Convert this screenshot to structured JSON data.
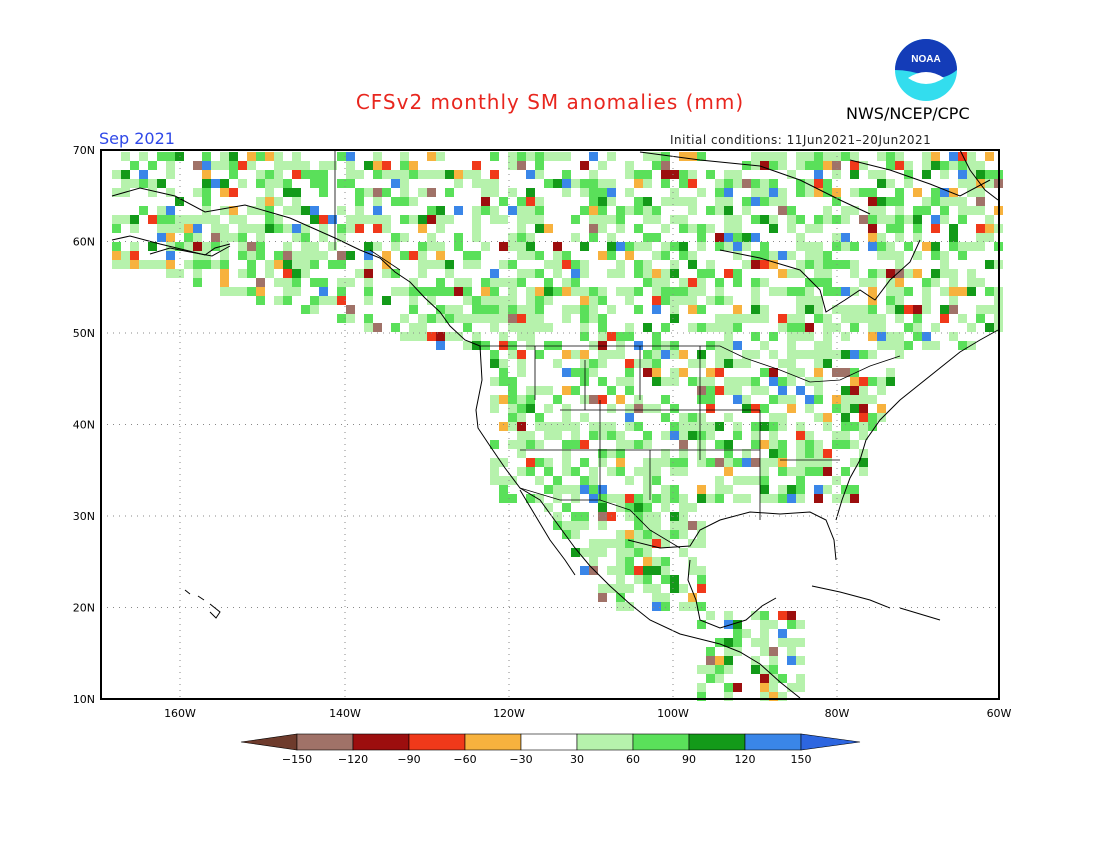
{
  "header": {
    "title": "CFSv2 monthly SM anomalies (mm)",
    "agency": "NWS/NCEP/CPC",
    "month": "Sep 2021",
    "initial_conditions": "Initial conditions: 11Jun2021–20Jun2021",
    "logo_text": "NOAA"
  },
  "map": {
    "lat_labels": [
      "70N",
      "60N",
      "50N",
      "40N",
      "30N",
      "20N",
      "10N"
    ],
    "lon_labels": [
      "160W",
      "140W",
      "120W",
      "100W",
      "80W",
      "60W"
    ],
    "colors": {
      "land_neutral": "#ffffff",
      "ocean": "#ffffff",
      "frame": "#000000",
      "grid": "#888888"
    }
  },
  "colorbar": {
    "labels": [
      "−150",
      "−120",
      "−90",
      "−60",
      "−30",
      "30",
      "60",
      "90",
      "120",
      "150"
    ],
    "colors": [
      "#6e3b2c",
      "#a07268",
      "#9c0e0e",
      "#f0391a",
      "#f7b23e",
      "#ffffff",
      "#b6f2ac",
      "#5ae05a",
      "#139a19",
      "#3a86e8",
      "#2d66e0"
    ]
  }
}
